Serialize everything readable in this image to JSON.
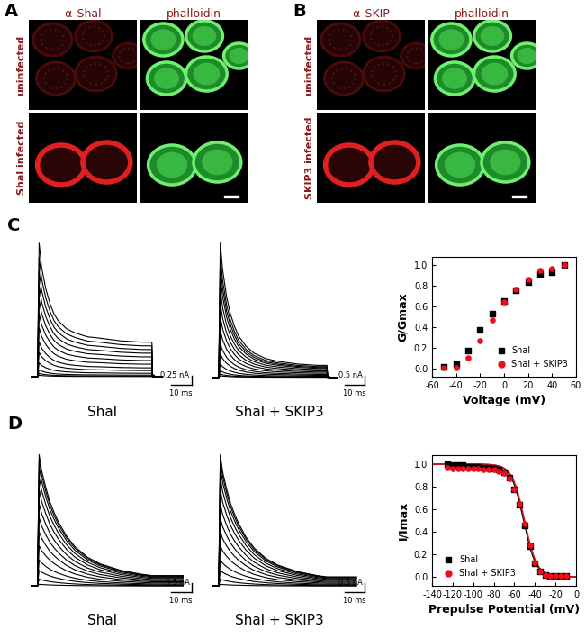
{
  "chart_data": [
    {
      "type": "image",
      "panel": "A",
      "column_titles": [
        "α–Shal",
        "phalloidin"
      ],
      "row_labels": [
        "uninfected",
        "Shal infected"
      ]
    },
    {
      "type": "image",
      "panel": "B",
      "column_titles": [
        "α–SKIP",
        "phalloidin"
      ],
      "row_labels": [
        "uninfected",
        "SKIP3 infected"
      ]
    },
    {
      "type": "trace",
      "panel": "C",
      "title": "Shal",
      "color": "#000000",
      "time_ms": [
        -3,
        0,
        0.8,
        2,
        4,
        6,
        8,
        10,
        14,
        18,
        24,
        30,
        40,
        50,
        55,
        55.3,
        57,
        60
      ],
      "shape": [
        0,
        0,
        1,
        0.82,
        0.66,
        0.55,
        0.47,
        0.42,
        0.36,
        0.33,
        0.3,
        0.29,
        0.27,
        0.26,
        0.26,
        0.02,
        0,
        0
      ],
      "peaks": [
        0.05,
        0.1,
        0.2,
        0.4,
        0.7,
        1.0,
        1.4,
        1.8,
        2.2,
        2.6,
        3.0,
        3.4,
        3.8
      ],
      "xlim": [
        -5,
        75
      ],
      "ylim": [
        -0.3,
        4.0
      ],
      "scale_bar": {
        "current": 0.25,
        "current_label": "0.25 nA",
        "time": 10,
        "time_label": "10 ms"
      }
    },
    {
      "type": "trace",
      "title": "Shal + SKIP3",
      "color": "#000000",
      "time_ms": [
        -3,
        0,
        0.8,
        2,
        4,
        6,
        8,
        10,
        14,
        18,
        24,
        30,
        40,
        50,
        55,
        55.3,
        57,
        60
      ],
      "shape": [
        0,
        0,
        1,
        0.8,
        0.6,
        0.47,
        0.38,
        0.31,
        0.23,
        0.18,
        0.14,
        0.12,
        0.1,
        0.09,
        0.09,
        0.01,
        0,
        0
      ],
      "peaks": [
        0.1,
        0.2,
        0.4,
        0.8,
        1.4,
        2.0,
        2.8,
        3.6,
        4.4,
        5.2,
        6.0,
        6.6,
        7.2,
        8.0
      ],
      "xlim": [
        -5,
        75
      ],
      "ylim": [
        -0.6,
        8.4
      ],
      "scale_bar": {
        "current": 0.5,
        "current_label": "0.5 nA",
        "time": 10,
        "time_label": "10 ms"
      }
    },
    {
      "type": "scatter",
      "xlabel": "Voltage (mV)",
      "ylabel": "G/Gmax",
      "xlim": [
        -60,
        60
      ],
      "xticks": [
        -60,
        -40,
        -20,
        0,
        20,
        40,
        60
      ],
      "ylim": [
        -0.08,
        1.08
      ],
      "yticks": [
        {
          "value": 0.0,
          "label": "0.0"
        },
        {
          "value": 0.2,
          "label": "0.2"
        },
        {
          "value": 0.4,
          "label": "0.4"
        },
        {
          "value": 0.6,
          "label": "0.6"
        },
        {
          "value": 0.8,
          "label": "0.8"
        },
        {
          "value": 1.0,
          "label": "1.0"
        }
      ],
      "legend": "lower right",
      "series": [
        {
          "name": "Shal",
          "color": "#000000",
          "marker": "square",
          "x": [
            -50,
            -40,
            -30,
            -20,
            -10,
            0,
            10,
            20,
            30,
            40,
            50
          ],
          "values": [
            0.02,
            0.04,
            0.17,
            0.37,
            0.53,
            0.65,
            0.76,
            0.84,
            0.91,
            0.93,
            1.0
          ]
        },
        {
          "name": "Shal + SKIP3",
          "color": "#e8101a",
          "marker": "circle",
          "x": [
            -50,
            -40,
            -30,
            -20,
            -10,
            0,
            10,
            20,
            30,
            40,
            50
          ],
          "values": [
            0.01,
            0.01,
            0.1,
            0.27,
            0.47,
            0.64,
            0.77,
            0.86,
            0.95,
            0.97,
            1.0
          ]
        }
      ]
    },
    {
      "type": "trace",
      "panel": "D",
      "title": "Shal",
      "color": "#000000",
      "time_ms": [
        -3,
        0,
        0.8,
        2,
        4,
        6,
        8,
        10,
        14,
        18,
        24,
        30,
        40,
        50,
        55,
        60,
        65,
        70
      ],
      "shape": [
        0,
        0,
        1,
        0.88,
        0.75,
        0.64,
        0.56,
        0.49,
        0.38,
        0.3,
        0.22,
        0.17,
        0.12,
        0.09,
        0.08,
        0.08,
        0.08,
        0.08
      ],
      "peaks": [
        0.1,
        0.4,
        0.9,
        1.5,
        2.3,
        3.1,
        3.9,
        4.7,
        5.5,
        6.2,
        6.8,
        7.2,
        7.5
      ],
      "xlim": [
        -5,
        75
      ],
      "ylim": [
        -0.5,
        8.5
      ],
      "scale_bar": {
        "current": 0.5,
        "current_label": "0.5 nA",
        "time": 10,
        "time_label": "10 ms"
      }
    },
    {
      "type": "trace",
      "title": "Shal + SKIP3",
      "color": "#000000",
      "time_ms": [
        -3,
        0,
        0.8,
        2,
        4,
        6,
        8,
        10,
        14,
        18,
        24,
        30,
        40,
        50,
        55,
        60,
        65,
        70
      ],
      "shape": [
        0,
        0,
        1,
        0.87,
        0.74,
        0.63,
        0.55,
        0.48,
        0.37,
        0.29,
        0.21,
        0.16,
        0.11,
        0.08,
        0.07,
        0.07,
        0.07,
        0.07
      ],
      "peaks": [
        0.1,
        0.4,
        0.9,
        1.5,
        2.3,
        3.1,
        3.9,
        4.7,
        5.5,
        6.2,
        6.8,
        7.2,
        7.5
      ],
      "xlim": [
        -5,
        75
      ],
      "ylim": [
        -0.5,
        8.5
      ],
      "scale_bar": {
        "current": 0.5,
        "current_label": "0.5 nA",
        "time": 10,
        "time_label": "10 ms"
      }
    },
    {
      "type": "scatter",
      "xlabel": "Prepulse Potential (mV)",
      "ylabel": "I/Imax",
      "xlim": [
        -140,
        0
      ],
      "xticks": [
        -140,
        -120,
        -100,
        -80,
        -60,
        -40,
        -20,
        0
      ],
      "ylim": [
        -0.08,
        1.08
      ],
      "yticks": [
        {
          "value": 0.0,
          "label": "0.0"
        },
        {
          "value": 0.2,
          "label": "0.2"
        },
        {
          "value": 0.4,
          "label": "0.4"
        },
        {
          "value": 0.6,
          "label": "0.6"
        },
        {
          "value": 0.8,
          "label": "0.8"
        },
        {
          "value": 1.0,
          "label": "1.0"
        }
      ],
      "legend": "lower left",
      "series": [
        {
          "name": "Shal",
          "color": "#000000",
          "marker": "square",
          "line_style": "solid",
          "fit": {
            "v_half": -51,
            "slope": 6
          },
          "x": [
            -125,
            -120,
            -115,
            -110,
            -105,
            -100,
            -95,
            -90,
            -85,
            -80,
            -75,
            -70,
            -65,
            -60,
            -55,
            -50,
            -45,
            -40,
            -35,
            -30,
            -25,
            -20,
            -15,
            -10
          ],
          "values": [
            1.0,
            0.99,
            0.99,
            0.99,
            0.98,
            0.98,
            0.98,
            0.97,
            0.97,
            0.96,
            0.95,
            0.93,
            0.88,
            0.78,
            0.64,
            0.46,
            0.27,
            0.12,
            0.05,
            0.02,
            0.01,
            0.01,
            0.01,
            0.01
          ]
        },
        {
          "name": "Shal + SKIP3",
          "color": "#e8101a",
          "marker": "circle",
          "line_style": "solid",
          "fit": {
            "v_half": -50,
            "slope": 6
          },
          "x": [
            -125,
            -120,
            -115,
            -110,
            -105,
            -100,
            -95,
            -90,
            -85,
            -80,
            -75,
            -70,
            -65,
            -60,
            -55,
            -50,
            -45,
            -40,
            -35,
            -30,
            -25,
            -20,
            -15,
            -10
          ],
          "values": [
            0.97,
            0.96,
            0.96,
            0.96,
            0.96,
            0.96,
            0.96,
            0.95,
            0.95,
            0.95,
            0.94,
            0.92,
            0.87,
            0.78,
            0.65,
            0.47,
            0.28,
            0.13,
            0.05,
            0.02,
            0.01,
            0.01,
            0.01,
            0.01
          ]
        }
      ]
    }
  ]
}
